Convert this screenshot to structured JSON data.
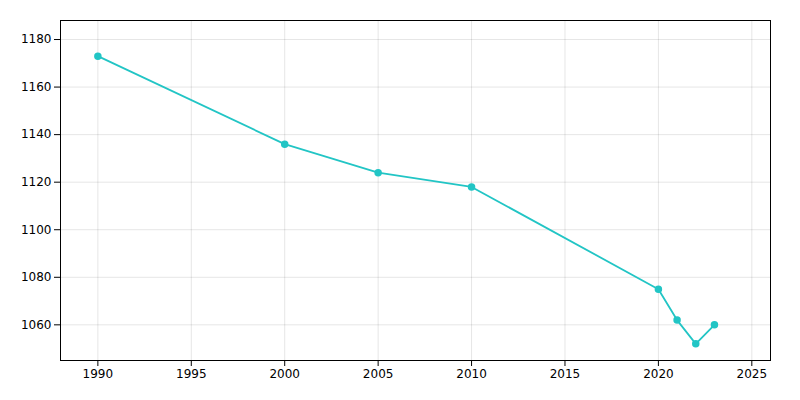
{
  "chart_data": {
    "type": "line",
    "x": [
      1990,
      2000,
      2005,
      2010,
      2020,
      2021,
      2022,
      2023
    ],
    "values": [
      1173,
      1136,
      1124,
      1118,
      1075,
      1062,
      1052,
      1060
    ],
    "color": "#22c5c5",
    "marker": "circle",
    "xlim": [
      1988,
      2026
    ],
    "ylim": [
      1045,
      1188
    ],
    "xticks": [
      1990,
      1995,
      2000,
      2005,
      2010,
      2015,
      2020,
      2025
    ],
    "yticks": [
      1060,
      1080,
      1100,
      1120,
      1140,
      1160,
      1180
    ],
    "grid": true
  }
}
